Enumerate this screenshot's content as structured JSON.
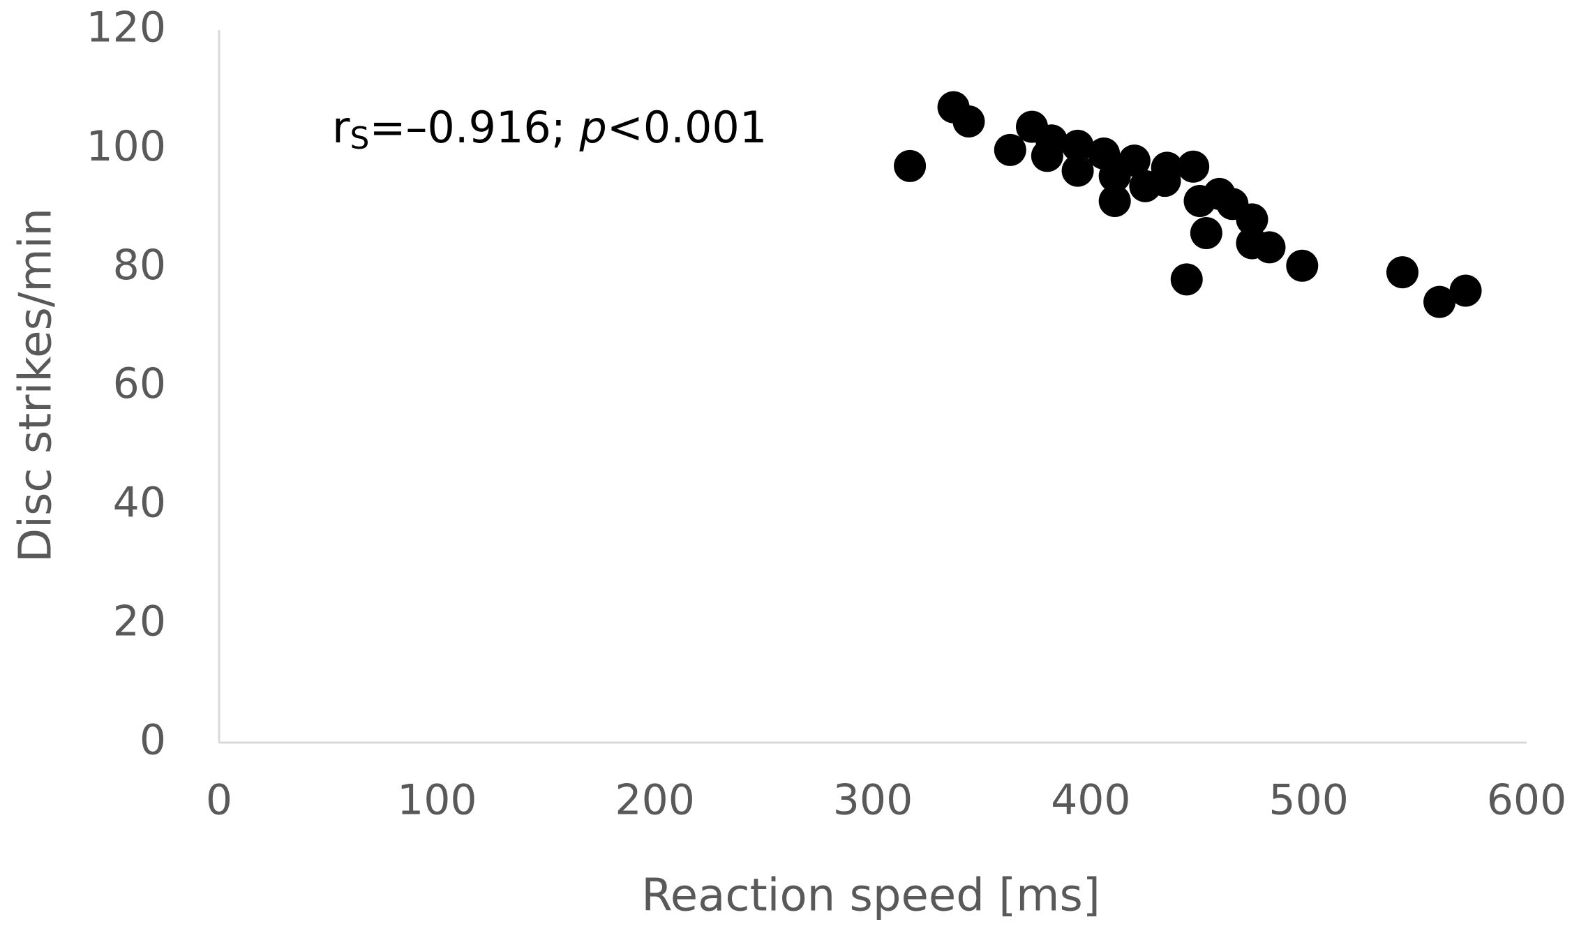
{
  "chart_data": {
    "type": "scatter",
    "xlabel": "Reaction speed [ms]",
    "ylabel": "Disc strikes/min",
    "annotation": [
      "r",
      "S",
      "=–0.916; ",
      "p",
      "<0.001"
    ],
    "xlim": [
      0,
      600
    ],
    "xticks": [
      0,
      100,
      200,
      300,
      400,
      500,
      600
    ],
    "ylim": [
      0,
      120
    ],
    "yticks": [
      0,
      20,
      40,
      60,
      80,
      100,
      120
    ],
    "grid": false,
    "color": "#000000",
    "x": [
      317,
      337,
      344,
      363,
      373,
      382,
      380,
      394,
      394,
      406,
      411,
      411,
      420,
      425,
      434,
      435,
      447,
      444,
      450,
      453,
      459,
      465,
      474,
      474,
      482,
      497,
      543,
      560,
      572
    ],
    "y": [
      97.1,
      107,
      104.6,
      99.8,
      103.7,
      101.4,
      98.8,
      100.5,
      96.3,
      99.2,
      95.4,
      91.2,
      98,
      93.7,
      94.6,
      96.8,
      97,
      78,
      91.2,
      85.8,
      92.4,
      90.7,
      88.1,
      84.1,
      83.4,
      80.3,
      79.2,
      74.2,
      76.1
    ]
  }
}
